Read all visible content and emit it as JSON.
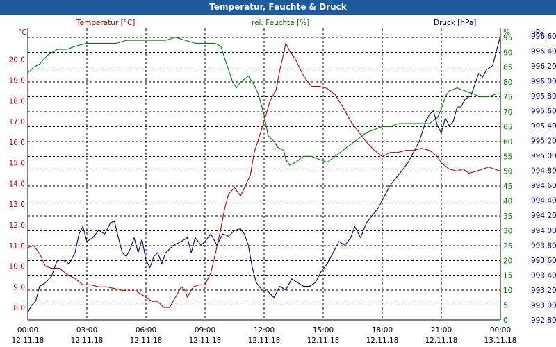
{
  "window": {
    "title": "Temperatur, Feuchte & Druck"
  },
  "chart_data": {
    "type": "line",
    "title": "Temperatur, Feuchte & Druck",
    "grid": true,
    "x_ticks": [
      {
        "hours": 0,
        "time": "00:00",
        "date": "12.11.18"
      },
      {
        "hours": 3,
        "time": "03:00",
        "date": "12.11.18"
      },
      {
        "hours": 6,
        "time": "06:00",
        "date": "12.11.18"
      },
      {
        "hours": 9,
        "time": "09:00",
        "date": "12.11.18"
      },
      {
        "hours": 12,
        "time": "12:00",
        "date": "12.11.18"
      },
      {
        "hours": 15,
        "time": "15:00",
        "date": "12.11.18"
      },
      {
        "hours": 18,
        "time": "18:00",
        "date": "12.11.18"
      },
      {
        "hours": 21,
        "time": "21:00",
        "date": "12.11.18"
      },
      {
        "hours": 24,
        "time": "00:00",
        "date": "13.11.18"
      }
    ],
    "axes": {
      "temperature": {
        "unit": "°C",
        "color": "#c00000",
        "ylim": [
          7.4,
          21.5
        ],
        "ticks": [
          "8,0",
          "9,0",
          "10,0",
          "11,0",
          "12,0",
          "13,0",
          "14,0",
          "15,0",
          "16,0",
          "17,0",
          "18,0",
          "19,0",
          "20,0"
        ]
      },
      "humidity": {
        "unit": "%",
        "color": "#008000",
        "ylim": [
          0,
          98
        ],
        "ticks": [
          "0",
          "5",
          "10",
          "15",
          "20",
          "25",
          "30",
          "35",
          "40",
          "45",
          "50",
          "55",
          "60",
          "65",
          "70",
          "75",
          "80",
          "85",
          "90",
          "95"
        ]
      },
      "pressure": {
        "unit": "hPa",
        "color": "#000080",
        "ylim": [
          992.8,
          996.7
        ],
        "ticks": [
          "992,80",
          "993,00",
          "993,20",
          "993,40",
          "993,60",
          "993,80",
          "994,00",
          "994,20",
          "994,40",
          "994,60",
          "994,80",
          "995,00",
          "995,20",
          "995,40",
          "995,60",
          "995,80",
          "996,00",
          "996,20",
          "996,40",
          "996,60"
        ]
      }
    },
    "series": [
      {
        "name": "Temperatur [°C]",
        "axis": "temperature",
        "color": "#c00000",
        "points": [
          [
            0,
            10.9
          ],
          [
            0.3,
            11.0
          ],
          [
            0.6,
            10.6
          ],
          [
            0.9,
            10.0
          ],
          [
            1.2,
            9.9
          ],
          [
            1.6,
            9.9
          ],
          [
            2.0,
            9.6
          ],
          [
            2.4,
            9.4
          ],
          [
            2.8,
            9.1
          ],
          [
            3.2,
            9.1
          ],
          [
            3.6,
            9.0
          ],
          [
            4.0,
            9.0
          ],
          [
            4.5,
            8.9
          ],
          [
            5.0,
            8.8
          ],
          [
            5.5,
            8.8
          ],
          [
            6.0,
            8.5
          ],
          [
            6.3,
            8.3
          ],
          [
            6.6,
            8.3
          ],
          [
            6.9,
            8.0
          ],
          [
            7.2,
            8.0
          ],
          [
            7.5,
            8.5
          ],
          [
            7.8,
            9.0
          ],
          [
            8.0,
            8.8
          ],
          [
            8.1,
            8.5
          ],
          [
            8.4,
            9.0
          ],
          [
            8.7,
            9.1
          ],
          [
            9.0,
            9.1
          ],
          [
            9.3,
            9.7
          ],
          [
            9.5,
            10.5
          ],
          [
            9.8,
            11.8
          ],
          [
            10.0,
            12.8
          ],
          [
            10.2,
            13.5
          ],
          [
            10.5,
            13.8
          ],
          [
            10.8,
            13.4
          ],
          [
            11.0,
            13.8
          ],
          [
            11.3,
            14.4
          ],
          [
            11.5,
            15.5
          ],
          [
            11.8,
            16.4
          ],
          [
            12.0,
            17.0
          ],
          [
            12.3,
            18.0
          ],
          [
            12.6,
            18.5
          ],
          [
            12.8,
            19.5
          ],
          [
            13.0,
            20.3
          ],
          [
            13.1,
            20.8
          ],
          [
            13.3,
            20.4
          ],
          [
            13.6,
            20.0
          ],
          [
            14.0,
            19.2
          ],
          [
            14.4,
            18.7
          ],
          [
            14.8,
            18.7
          ],
          [
            15.2,
            18.6
          ],
          [
            15.6,
            18.3
          ],
          [
            16.0,
            17.7
          ],
          [
            16.4,
            17.0
          ],
          [
            16.8,
            16.5
          ],
          [
            17.2,
            16.0
          ],
          [
            17.6,
            15.6
          ],
          [
            18.0,
            15.3
          ],
          [
            18.4,
            15.5
          ],
          [
            18.8,
            15.5
          ],
          [
            19.2,
            15.6
          ],
          [
            19.6,
            15.6
          ],
          [
            20.0,
            15.7
          ],
          [
            20.4,
            15.6
          ],
          [
            20.8,
            15.3
          ],
          [
            21.0,
            15.0
          ],
          [
            21.4,
            14.7
          ],
          [
            21.8,
            14.6
          ],
          [
            22.1,
            14.7
          ],
          [
            22.4,
            14.5
          ],
          [
            22.8,
            14.6
          ],
          [
            23.1,
            14.7
          ],
          [
            23.4,
            14.8
          ],
          [
            23.7,
            14.7
          ],
          [
            24.0,
            14.6
          ]
        ]
      },
      {
        "name": "rel. Feuchte [%]",
        "axis": "humidity",
        "color": "#008000",
        "points": [
          [
            0,
            83
          ],
          [
            0.3,
            85
          ],
          [
            0.6,
            86
          ],
          [
            1.0,
            89
          ],
          [
            1.5,
            91
          ],
          [
            2.0,
            91
          ],
          [
            2.4,
            92
          ],
          [
            3.0,
            93
          ],
          [
            3.5,
            93
          ],
          [
            4.0,
            93
          ],
          [
            4.5,
            93
          ],
          [
            5.0,
            94
          ],
          [
            5.5,
            94
          ],
          [
            6.0,
            94
          ],
          [
            6.5,
            94
          ],
          [
            7.0,
            94
          ],
          [
            7.5,
            95
          ],
          [
            8.0,
            94
          ],
          [
            8.5,
            93
          ],
          [
            9.0,
            93
          ],
          [
            9.5,
            93
          ],
          [
            9.8,
            92
          ],
          [
            10.0,
            88
          ],
          [
            10.2,
            84
          ],
          [
            10.4,
            80
          ],
          [
            10.6,
            78
          ],
          [
            10.8,
            80
          ],
          [
            11.0,
            81
          ],
          [
            11.2,
            82
          ],
          [
            11.5,
            79
          ],
          [
            11.7,
            76
          ],
          [
            12.0,
            69
          ],
          [
            12.2,
            62
          ],
          [
            12.5,
            60
          ],
          [
            12.7,
            58
          ],
          [
            13.0,
            57
          ],
          [
            13.1,
            54
          ],
          [
            13.3,
            52
          ],
          [
            13.6,
            53
          ],
          [
            14.0,
            55
          ],
          [
            14.4,
            55
          ],
          [
            14.8,
            54
          ],
          [
            15.2,
            53
          ],
          [
            15.6,
            55
          ],
          [
            16.0,
            57
          ],
          [
            16.4,
            59
          ],
          [
            16.8,
            61
          ],
          [
            17.2,
            63
          ],
          [
            17.6,
            64
          ],
          [
            18.0,
            65
          ],
          [
            18.4,
            65
          ],
          [
            18.8,
            66
          ],
          [
            19.2,
            66
          ],
          [
            19.6,
            66
          ],
          [
            20.0,
            66
          ],
          [
            20.4,
            66
          ],
          [
            20.8,
            68
          ],
          [
            21.0,
            71
          ],
          [
            21.2,
            75
          ],
          [
            21.4,
            77
          ],
          [
            21.8,
            78
          ],
          [
            22.2,
            77
          ],
          [
            22.6,
            76
          ],
          [
            23.0,
            75
          ],
          [
            23.4,
            75
          ],
          [
            23.8,
            76
          ],
          [
            24.0,
            76
          ]
        ]
      },
      {
        "name": "Druck [hPa]",
        "axis": "pressure",
        "color": "#000080",
        "points": [
          [
            0,
            992.9
          ],
          [
            0.2,
            993.0
          ],
          [
            0.4,
            993.05
          ],
          [
            0.6,
            993.25
          ],
          [
            0.9,
            993.3
          ],
          [
            1.2,
            993.38
          ],
          [
            1.5,
            993.6
          ],
          [
            1.8,
            993.6
          ],
          [
            2.1,
            993.55
          ],
          [
            2.4,
            993.7
          ],
          [
            2.6,
            993.95
          ],
          [
            2.8,
            994.05
          ],
          [
            3.0,
            993.85
          ],
          [
            3.3,
            993.9
          ],
          [
            3.6,
            994.0
          ],
          [
            3.9,
            993.95
          ],
          [
            4.2,
            994.1
          ],
          [
            4.4,
            994.12
          ],
          [
            4.6,
            993.9
          ],
          [
            4.8,
            993.7
          ],
          [
            5.0,
            993.65
          ],
          [
            5.2,
            993.75
          ],
          [
            5.4,
            993.9
          ],
          [
            5.6,
            993.7
          ],
          [
            5.8,
            993.88
          ],
          [
            6.0,
            993.6
          ],
          [
            6.2,
            993.5
          ],
          [
            6.4,
            993.65
          ],
          [
            6.6,
            993.7
          ],
          [
            6.8,
            993.55
          ],
          [
            7.0,
            993.7
          ],
          [
            7.4,
            993.8
          ],
          [
            7.8,
            993.85
          ],
          [
            8.1,
            993.9
          ],
          [
            8.3,
            993.7
          ],
          [
            8.5,
            993.9
          ],
          [
            8.8,
            993.8
          ],
          [
            9.0,
            993.85
          ],
          [
            9.3,
            993.95
          ],
          [
            9.6,
            993.8
          ],
          [
            9.9,
            993.95
          ],
          [
            10.2,
            993.92
          ],
          [
            10.5,
            994.0
          ],
          [
            10.8,
            994.02
          ],
          [
            11.0,
            993.95
          ],
          [
            11.2,
            993.8
          ],
          [
            11.4,
            993.5
          ],
          [
            11.6,
            993.3
          ],
          [
            11.9,
            993.2
          ],
          [
            12.2,
            993.18
          ],
          [
            12.5,
            993.1
          ],
          [
            12.8,
            993.25
          ],
          [
            13.1,
            993.2
          ],
          [
            13.4,
            993.35
          ],
          [
            13.7,
            993.3
          ],
          [
            14.0,
            993.25
          ],
          [
            14.3,
            993.25
          ],
          [
            14.6,
            993.3
          ],
          [
            14.9,
            993.45
          ],
          [
            15.2,
            993.55
          ],
          [
            15.5,
            993.7
          ],
          [
            15.8,
            993.85
          ],
          [
            16.1,
            993.8
          ],
          [
            16.4,
            993.9
          ],
          [
            16.6,
            994.05
          ],
          [
            16.9,
            993.9
          ],
          [
            17.2,
            994.1
          ],
          [
            17.5,
            994.2
          ],
          [
            17.8,
            994.3
          ],
          [
            18.1,
            994.45
          ],
          [
            18.4,
            994.6
          ],
          [
            18.7,
            994.7
          ],
          [
            19.0,
            994.8
          ],
          [
            19.3,
            994.9
          ],
          [
            19.6,
            995.05
          ],
          [
            19.9,
            995.2
          ],
          [
            20.2,
            995.45
          ],
          [
            20.4,
            995.55
          ],
          [
            20.6,
            995.6
          ],
          [
            20.8,
            995.4
          ],
          [
            21.0,
            995.3
          ],
          [
            21.2,
            995.5
          ],
          [
            21.4,
            995.4
          ],
          [
            21.6,
            995.45
          ],
          [
            21.8,
            995.65
          ],
          [
            22.0,
            995.65
          ],
          [
            22.2,
            995.75
          ],
          [
            22.5,
            995.8
          ],
          [
            22.7,
            995.95
          ],
          [
            22.9,
            996.1
          ],
          [
            23.1,
            996.05
          ],
          [
            23.3,
            996.15
          ],
          [
            23.6,
            996.2
          ],
          [
            23.8,
            996.4
          ],
          [
            24.0,
            996.6
          ]
        ]
      }
    ]
  }
}
